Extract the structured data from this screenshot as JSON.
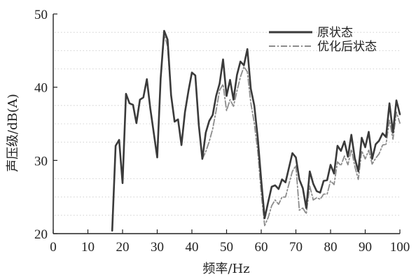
{
  "chart_data": {
    "type": "line",
    "title": "",
    "xlabel": "频率/Hz",
    "ylabel": "声压级/dB(A)",
    "xlim": [
      0,
      100
    ],
    "ylim": [
      20,
      50
    ],
    "x_ticks": [
      0,
      10,
      20,
      30,
      40,
      50,
      60,
      70,
      80,
      90,
      100
    ],
    "y_ticks": [
      20,
      30,
      40,
      50
    ],
    "grid": "horizontal-dotted",
    "legend_position": "top-right",
    "series": [
      {
        "name": "原状态",
        "color": "#3a3a3a",
        "style": "solid",
        "x": [
          17,
          18,
          19,
          20,
          21,
          22,
          23,
          24,
          25,
          26,
          27,
          28,
          29,
          30,
          31,
          32,
          33,
          34,
          35,
          36,
          37,
          38,
          39,
          40,
          41,
          42,
          43,
          44,
          45,
          46,
          47,
          48,
          49,
          50,
          51,
          52,
          53,
          54,
          55,
          56,
          57,
          58,
          59,
          60,
          61,
          62,
          63,
          64,
          65,
          66,
          67,
          68,
          69,
          70,
          71,
          72,
          73,
          74,
          75,
          76,
          77,
          78,
          79,
          80,
          81,
          82,
          83,
          84,
          85,
          86,
          87,
          88,
          89,
          90,
          91,
          92,
          93,
          94,
          95,
          96,
          97,
          98,
          99,
          100
        ],
        "values": [
          20.4,
          32,
          32.8,
          26.9,
          39.1,
          37.8,
          37.6,
          35.1,
          38.3,
          38.6,
          41.1,
          37.1,
          33.8,
          30.4,
          41.2,
          47.7,
          46.5,
          38.9,
          35.3,
          35.6,
          32.1,
          36.6,
          39.5,
          42,
          41.6,
          34.8,
          30.2,
          33.8,
          35.4,
          36.2,
          38.8,
          40.5,
          43.8,
          38.8,
          41,
          38.3,
          41.7,
          43.5,
          43,
          45.2,
          39.8,
          37.5,
          33,
          27.3,
          22.1,
          24.3,
          26.4,
          26.6,
          26.1,
          27.4,
          27,
          29,
          31,
          30.4,
          27.4,
          26.2,
          23.5,
          28.5,
          26.8,
          25.8,
          25.6,
          27.2,
          27.3,
          29.4,
          28.2,
          32,
          31.3,
          32.6,
          30.5,
          33.5,
          30.3,
          28.5,
          33.1,
          31.8,
          33.9,
          30.2,
          32.2,
          32.7,
          33.7,
          33.2,
          37.8,
          33.8,
          38.2,
          36.3
        ]
      },
      {
        "name": "优化后状态",
        "color": "#8c8c8c",
        "style": "dashdot",
        "x": [
          17,
          18,
          19,
          20,
          21,
          22,
          23,
          24,
          25,
          26,
          27,
          28,
          29,
          30,
          31,
          32,
          33,
          34,
          35,
          36,
          37,
          38,
          39,
          40,
          41,
          42,
          43,
          44,
          45,
          46,
          47,
          48,
          49,
          50,
          51,
          52,
          53,
          54,
          55,
          56,
          57,
          58,
          59,
          60,
          61,
          62,
          63,
          64,
          65,
          66,
          67,
          68,
          69,
          70,
          71,
          72,
          73,
          74,
          75,
          76,
          77,
          78,
          79,
          80,
          81,
          82,
          83,
          84,
          85,
          86,
          87,
          88,
          89,
          90,
          91,
          92,
          93,
          94,
          95,
          96,
          97,
          98,
          99,
          100
        ],
        "values": [
          20.4,
          32,
          32.8,
          26.9,
          39.1,
          37.8,
          37.6,
          35.1,
          38.3,
          38.6,
          41.1,
          37.1,
          33.8,
          30.4,
          41.2,
          47.2,
          45.6,
          38.9,
          35.3,
          35.6,
          32.1,
          36.6,
          39.5,
          42,
          41.6,
          34.8,
          30.2,
          31.2,
          32.6,
          34.3,
          36.8,
          39.6,
          40.4,
          36.8,
          38.3,
          37.4,
          39.5,
          41.4,
          42.8,
          42.1,
          37.9,
          35.1,
          31.2,
          25.5,
          21.1,
          22.2,
          23.8,
          24.6,
          24,
          25,
          25,
          26.8,
          28.5,
          29.3,
          23.2,
          23.5,
          22.7,
          26.5,
          24.6,
          24.9,
          24.7,
          25.4,
          25.4,
          27.2,
          26.7,
          29.8,
          29.3,
          30.6,
          29.4,
          31.5,
          29.2,
          27.4,
          31.3,
          30.2,
          31.4,
          29.5,
          30.3,
          30.9,
          32.1,
          32.2,
          35.5,
          32.9,
          36.6,
          35.1
        ]
      }
    ]
  }
}
